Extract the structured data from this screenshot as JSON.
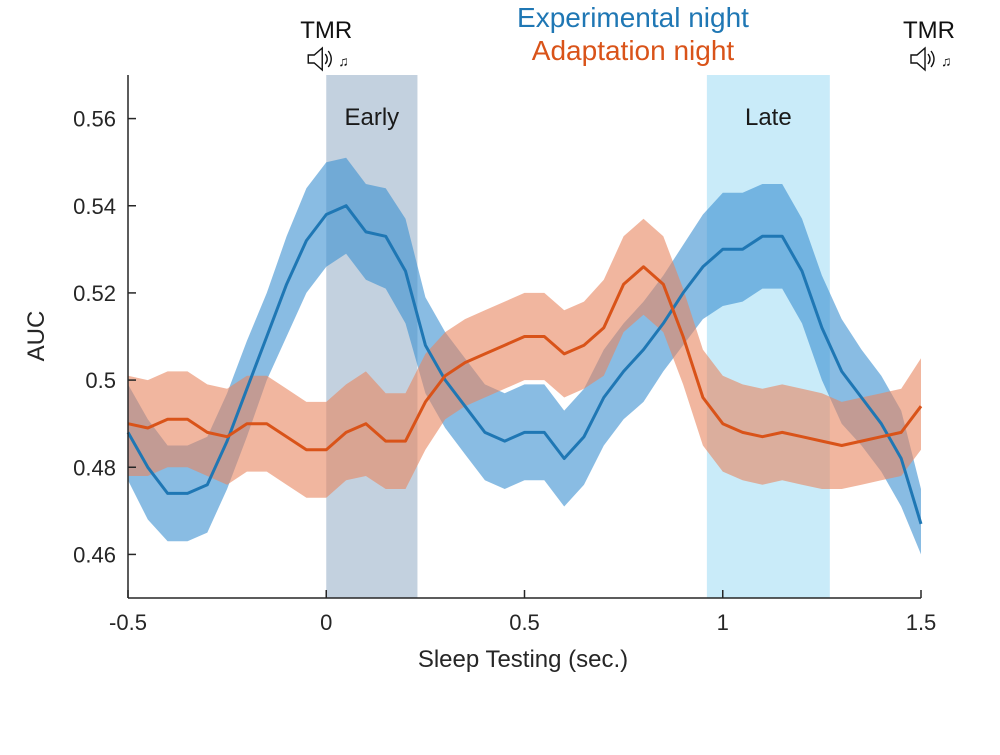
{
  "chart_data": {
    "type": "line",
    "title": "",
    "xlabel": "Sleep Testing (sec.)",
    "ylabel": "AUC",
    "xlim": [
      -0.5,
      1.5
    ],
    "ylim": [
      0.45,
      0.57
    ],
    "x_ticks": [
      {
        "value": -0.5,
        "label": "-0.5"
      },
      {
        "value": 0,
        "label": "0"
      },
      {
        "value": 0.5,
        "label": "0.5"
      },
      {
        "value": 1,
        "label": "1"
      },
      {
        "value": 1.5,
        "label": "1.5"
      }
    ],
    "y_ticks": [
      {
        "value": 0.46,
        "label": "0.46"
      },
      {
        "value": 0.48,
        "label": "0.48"
      },
      {
        "value": 0.5,
        "label": "0.5"
      },
      {
        "value": 0.52,
        "label": "0.52"
      },
      {
        "value": 0.54,
        "label": "0.54"
      },
      {
        "value": 0.56,
        "label": "0.56"
      }
    ],
    "grid": false,
    "legend": [
      {
        "name": "Experimental night",
        "color": "#1f77b4"
      },
      {
        "name": "Adaptation night",
        "color": "#d95319"
      }
    ],
    "legend_position": "top-center",
    "windows": [
      {
        "name": "Early",
        "label": "Early",
        "start": 0.0,
        "end": 0.23,
        "color": "#b9c9d9"
      },
      {
        "name": "Late",
        "label": "Late",
        "start": 0.96,
        "end": 1.27,
        "color": "#bfe8f8"
      }
    ],
    "markers": [
      {
        "name": "tmr-start",
        "label": "TMR",
        "x": 0.0
      },
      {
        "name": "tmr-end",
        "label": "TMR",
        "x": 1.5
      }
    ],
    "series": [
      {
        "name": "Experimental night",
        "color": "#1f77b4",
        "band_color": "#3b8fd0",
        "x": [
          -0.5,
          -0.45,
          -0.4,
          -0.35,
          -0.3,
          -0.25,
          -0.2,
          -0.15,
          -0.1,
          -0.05,
          0.0,
          0.05,
          0.1,
          0.15,
          0.2,
          0.25,
          0.3,
          0.35,
          0.4,
          0.45,
          0.5,
          0.55,
          0.6,
          0.65,
          0.7,
          0.75,
          0.8,
          0.85,
          0.9,
          0.95,
          1.0,
          1.05,
          1.1,
          1.15,
          1.2,
          1.25,
          1.3,
          1.35,
          1.4,
          1.45,
          1.5
        ],
        "mean": [
          0.488,
          0.48,
          0.474,
          0.474,
          0.476,
          0.486,
          0.498,
          0.51,
          0.522,
          0.532,
          0.538,
          0.54,
          0.534,
          0.533,
          0.525,
          0.508,
          0.5,
          0.494,
          0.488,
          0.486,
          0.488,
          0.488,
          0.482,
          0.487,
          0.496,
          0.502,
          0.507,
          0.513,
          0.52,
          0.526,
          0.53,
          0.53,
          0.533,
          0.533,
          0.525,
          0.512,
          0.502,
          0.496,
          0.49,
          0.482,
          0.467
        ],
        "lower": [
          0.477,
          0.468,
          0.463,
          0.463,
          0.465,
          0.475,
          0.487,
          0.5,
          0.51,
          0.52,
          0.526,
          0.529,
          0.523,
          0.521,
          0.513,
          0.497,
          0.489,
          0.483,
          0.477,
          0.475,
          0.477,
          0.477,
          0.471,
          0.476,
          0.485,
          0.491,
          0.495,
          0.502,
          0.508,
          0.514,
          0.517,
          0.518,
          0.521,
          0.521,
          0.513,
          0.5,
          0.49,
          0.485,
          0.479,
          0.471,
          0.46
        ],
        "upper": [
          0.499,
          0.491,
          0.485,
          0.485,
          0.487,
          0.497,
          0.509,
          0.52,
          0.533,
          0.544,
          0.55,
          0.551,
          0.545,
          0.544,
          0.537,
          0.519,
          0.511,
          0.505,
          0.499,
          0.497,
          0.499,
          0.499,
          0.493,
          0.498,
          0.507,
          0.513,
          0.518,
          0.524,
          0.531,
          0.538,
          0.543,
          0.543,
          0.545,
          0.545,
          0.537,
          0.524,
          0.514,
          0.507,
          0.501,
          0.493,
          0.475
        ]
      },
      {
        "name": "Adaptation night",
        "color": "#d95319",
        "band_color": "#e8855f",
        "x": [
          -0.5,
          -0.45,
          -0.4,
          -0.35,
          -0.3,
          -0.25,
          -0.2,
          -0.15,
          -0.1,
          -0.05,
          0.0,
          0.05,
          0.1,
          0.15,
          0.2,
          0.25,
          0.3,
          0.35,
          0.4,
          0.45,
          0.5,
          0.55,
          0.6,
          0.65,
          0.7,
          0.75,
          0.8,
          0.85,
          0.9,
          0.95,
          1.0,
          1.05,
          1.1,
          1.15,
          1.2,
          1.25,
          1.3,
          1.35,
          1.4,
          1.45,
          1.5
        ],
        "mean": [
          0.49,
          0.489,
          0.491,
          0.491,
          0.488,
          0.487,
          0.49,
          0.49,
          0.487,
          0.484,
          0.484,
          0.488,
          0.49,
          0.486,
          0.486,
          0.495,
          0.501,
          0.504,
          0.506,
          0.508,
          0.51,
          0.51,
          0.506,
          0.508,
          0.512,
          0.522,
          0.526,
          0.522,
          0.51,
          0.496,
          0.49,
          0.488,
          0.487,
          0.488,
          0.487,
          0.486,
          0.485,
          0.486,
          0.487,
          0.488,
          0.494
        ],
        "lower": [
          0.478,
          0.478,
          0.48,
          0.48,
          0.478,
          0.476,
          0.479,
          0.479,
          0.476,
          0.473,
          0.473,
          0.477,
          0.478,
          0.475,
          0.475,
          0.484,
          0.491,
          0.494,
          0.496,
          0.498,
          0.5,
          0.5,
          0.496,
          0.498,
          0.501,
          0.511,
          0.515,
          0.511,
          0.499,
          0.485,
          0.479,
          0.477,
          0.476,
          0.477,
          0.476,
          0.475,
          0.475,
          0.476,
          0.477,
          0.478,
          0.484
        ],
        "upper": [
          0.501,
          0.5,
          0.502,
          0.502,
          0.499,
          0.498,
          0.501,
          0.501,
          0.498,
          0.495,
          0.495,
          0.499,
          0.502,
          0.497,
          0.497,
          0.506,
          0.511,
          0.514,
          0.516,
          0.518,
          0.52,
          0.52,
          0.516,
          0.518,
          0.523,
          0.533,
          0.537,
          0.533,
          0.521,
          0.507,
          0.501,
          0.499,
          0.498,
          0.499,
          0.498,
          0.497,
          0.495,
          0.496,
          0.497,
          0.498,
          0.505
        ]
      }
    ]
  }
}
